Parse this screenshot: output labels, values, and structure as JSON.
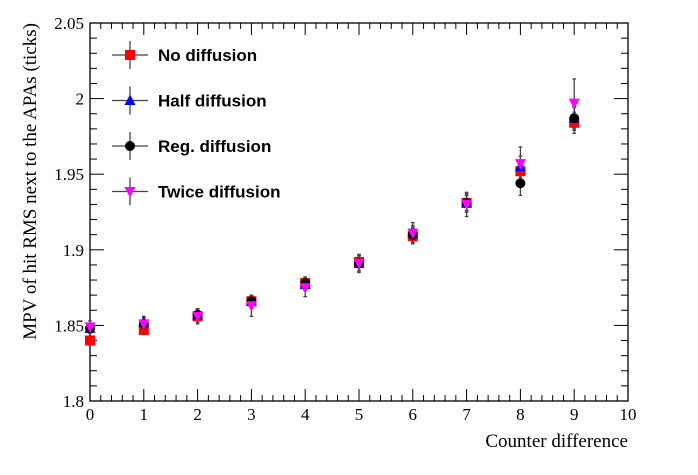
{
  "chart_data": {
    "type": "scatter",
    "title": "",
    "xlabel": "Counter difference",
    "ylabel": "MPV of hit RMS next to the APAs (ticks)",
    "xlim": [
      0,
      10
    ],
    "ylim": [
      1.8,
      2.05
    ],
    "x_ticks": [
      0,
      1,
      2,
      3,
      4,
      5,
      6,
      7,
      8,
      9,
      10
    ],
    "y_ticks": [
      1.8,
      1.85,
      1.9,
      1.95,
      2,
      2.05
    ],
    "y_tick_labels": [
      "1.8",
      "1.85",
      "1.9",
      "1.95",
      "2",
      "2.05"
    ],
    "grid": false,
    "legend_position": "top-left",
    "series": [
      {
        "name": "No diffusion",
        "marker": "square",
        "color": "#ff0000",
        "x": [
          0,
          1,
          2,
          3,
          4,
          5,
          6,
          7,
          8,
          9
        ],
        "y": [
          1.84,
          1.847,
          1.856,
          1.866,
          1.878,
          1.892,
          1.909,
          1.931,
          1.952,
          1.984
        ],
        "err": [
          0.003,
          0.003,
          0.004,
          0.004,
          0.004,
          0.004,
          0.005,
          0.005,
          0.006,
          0.007
        ]
      },
      {
        "name": "Half diffusion",
        "marker": "triangle-up",
        "color": "#0000ff",
        "x": [
          0,
          1,
          2,
          3,
          4,
          5,
          6,
          7,
          8,
          9
        ],
        "y": [
          1.848,
          1.852,
          1.857,
          1.866,
          1.877,
          1.891,
          1.911,
          1.931,
          1.955,
          1.987
        ],
        "err": [
          0.003,
          0.004,
          0.004,
          0.004,
          0.004,
          0.005,
          0.005,
          0.006,
          0.007,
          0.007
        ]
      },
      {
        "name": "Reg. diffusion",
        "marker": "circle",
        "color": "#000000",
        "x": [
          0,
          1,
          2,
          3,
          4,
          5,
          6,
          7,
          8,
          9
        ],
        "y": [
          1.848,
          1.851,
          1.857,
          1.866,
          1.878,
          1.891,
          1.91,
          1.931,
          1.944,
          1.987
        ],
        "err": [
          0.003,
          0.004,
          0.004,
          0.004,
          0.004,
          0.005,
          0.005,
          0.006,
          0.008,
          0.008
        ]
      },
      {
        "name": "Twice diffusion",
        "marker": "triangle-down",
        "color": "#ff00ff",
        "x": [
          0,
          1,
          2,
          3,
          4,
          5,
          6,
          7,
          8,
          9
        ],
        "y": [
          1.849,
          1.851,
          1.856,
          1.863,
          1.875,
          1.891,
          1.911,
          1.93,
          1.957,
          1.997
        ],
        "err": [
          0.004,
          0.004,
          0.005,
          0.007,
          0.006,
          0.006,
          0.007,
          0.008,
          0.011,
          0.016
        ]
      }
    ]
  }
}
